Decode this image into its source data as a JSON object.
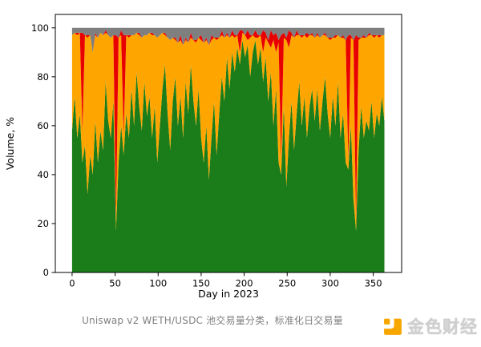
{
  "chart_data": {
    "type": "area",
    "stacked": true,
    "normalized_total": 100,
    "title": "",
    "xlabel": "Day in 2023",
    "ylabel": "Volume, %",
    "x_ticks": [
      0,
      50,
      100,
      150,
      200,
      250,
      300,
      350
    ],
    "y_ticks": [
      0,
      20,
      40,
      60,
      80,
      100
    ],
    "xlim": [
      -19.5,
      383
    ],
    "ylim": [
      0,
      105.5
    ],
    "grid": false,
    "legend": "none",
    "x_day_start": 0,
    "x_day_step": 3,
    "days": [
      0,
      3,
      6,
      9,
      12,
      15,
      18,
      21,
      24,
      27,
      30,
      33,
      36,
      39,
      42,
      45,
      48,
      51,
      54,
      57,
      60,
      63,
      66,
      69,
      72,
      75,
      78,
      81,
      84,
      87,
      90,
      93,
      96,
      99,
      102,
      105,
      108,
      111,
      114,
      117,
      120,
      123,
      126,
      129,
      132,
      135,
      138,
      141,
      144,
      147,
      150,
      153,
      156,
      159,
      162,
      165,
      168,
      171,
      174,
      177,
      180,
      183,
      186,
      189,
      192,
      195,
      198,
      201,
      204,
      207,
      210,
      213,
      216,
      219,
      222,
      225,
      228,
      231,
      234,
      237,
      240,
      243,
      246,
      249,
      252,
      255,
      258,
      261,
      264,
      267,
      270,
      273,
      276,
      279,
      282,
      285,
      288,
      291,
      294,
      297,
      300,
      303,
      306,
      309,
      312,
      315,
      318,
      321,
      324,
      327,
      330,
      333,
      336,
      339,
      342,
      345,
      348,
      351,
      354,
      357,
      360,
      363
    ],
    "series": [
      {
        "name": "green",
        "color": "#1a7d1a",
        "values": [
          58,
          72,
          55,
          65,
          45,
          52,
          32,
          48,
          40,
          62,
          45,
          58,
          50,
          78,
          62,
          55,
          70,
          17,
          45,
          60,
          48,
          65,
          55,
          75,
          60,
          82,
          68,
          58,
          78,
          64,
          72,
          55,
          68,
          45,
          60,
          75,
          85,
          65,
          50,
          70,
          80,
          60,
          72,
          55,
          78,
          65,
          85,
          70,
          60,
          75,
          55,
          45,
          60,
          38,
          55,
          70,
          48,
          65,
          80,
          70,
          88,
          75,
          90,
          82,
          92,
          85,
          95,
          88,
          93,
          80,
          90,
          95,
          85,
          92,
          78,
          88,
          70,
          82,
          60,
          75,
          45,
          40,
          68,
          35,
          55,
          70,
          50,
          65,
          78,
          60,
          72,
          55,
          68,
          75,
          62,
          75,
          58,
          70,
          80,
          65,
          55,
          72,
          60,
          78,
          55,
          65,
          45,
          42,
          60,
          30,
          17,
          50,
          68,
          55,
          62,
          58,
          70,
          55,
          65,
          60,
          72,
          62
        ]
      },
      {
        "name": "orange",
        "color": "#ffa500",
        "values": [
          39,
          26,
          42,
          33,
          13,
          45,
          64,
          49,
          50,
          35,
          51,
          40,
          47,
          20,
          35,
          41,
          27,
          5,
          51,
          37,
          8,
          32,
          41,
          22,
          37,
          16,
          29,
          38,
          19,
          33,
          26,
          42,
          29,
          51,
          37,
          23,
          12,
          31,
          45,
          26,
          15,
          34,
          23,
          38,
          17,
          29,
          11,
          25,
          34,
          21,
          40,
          49,
          35,
          55,
          40,
          26,
          47,
          31,
          17,
          26,
          9,
          21,
          7,
          14,
          5,
          5,
          3,
          9,
          2,
          16,
          7,
          1,
          11,
          5,
          12,
          8,
          24,
          10,
          35,
          15,
          49,
          6,
          28,
          60,
          37,
          27,
          46,
          32,
          19,
          36,
          25,
          41,
          29,
          22,
          34,
          22,
          38,
          27,
          17,
          31,
          40,
          24,
          36,
          19,
          41,
          31,
          50,
          4,
          36,
          65,
          4,
          45,
          28,
          41,
          34,
          39,
          27,
          41,
          32,
          36,
          25,
          35
        ]
      },
      {
        "name": "red",
        "color": "#e80000",
        "values": [
          0,
          0,
          1,
          0,
          40,
          0,
          1,
          0,
          0,
          1,
          0,
          0,
          0,
          1,
          0,
          0,
          0,
          75,
          0,
          2,
          41,
          0,
          1,
          0,
          0,
          0,
          1,
          0,
          0,
          0,
          0,
          1,
          0,
          0,
          0,
          0,
          1,
          0,
          0,
          0,
          1,
          0,
          2,
          0,
          1,
          0,
          2,
          0,
          1,
          0,
          2,
          0,
          1,
          0,
          2,
          0,
          1,
          0,
          2,
          0,
          1,
          0,
          2,
          1,
          0,
          9,
          1,
          0,
          4,
          1,
          0,
          3,
          1,
          0,
          9,
          2,
          1,
          7,
          2,
          8,
          1,
          51,
          2,
          1,
          7,
          1,
          0,
          2,
          0,
          1,
          0,
          2,
          0,
          1,
          0,
          1,
          0,
          0,
          1,
          0,
          1,
          0,
          1,
          0,
          0,
          1,
          0,
          51,
          1,
          0,
          76,
          1,
          0,
          1,
          0,
          1,
          0,
          1,
          0,
          1,
          0,
          0
        ]
      },
      {
        "name": "gray",
        "color": "#7f7f7f",
        "remainder": true
      }
    ]
  },
  "caption": {
    "text": "Uniswap v2 WETH/USDC 池交易量分类，标准化日交易量"
  },
  "logo": {
    "text": "金色财经",
    "icon": "golden-finance-icon",
    "icon_color": "#f7a600"
  }
}
